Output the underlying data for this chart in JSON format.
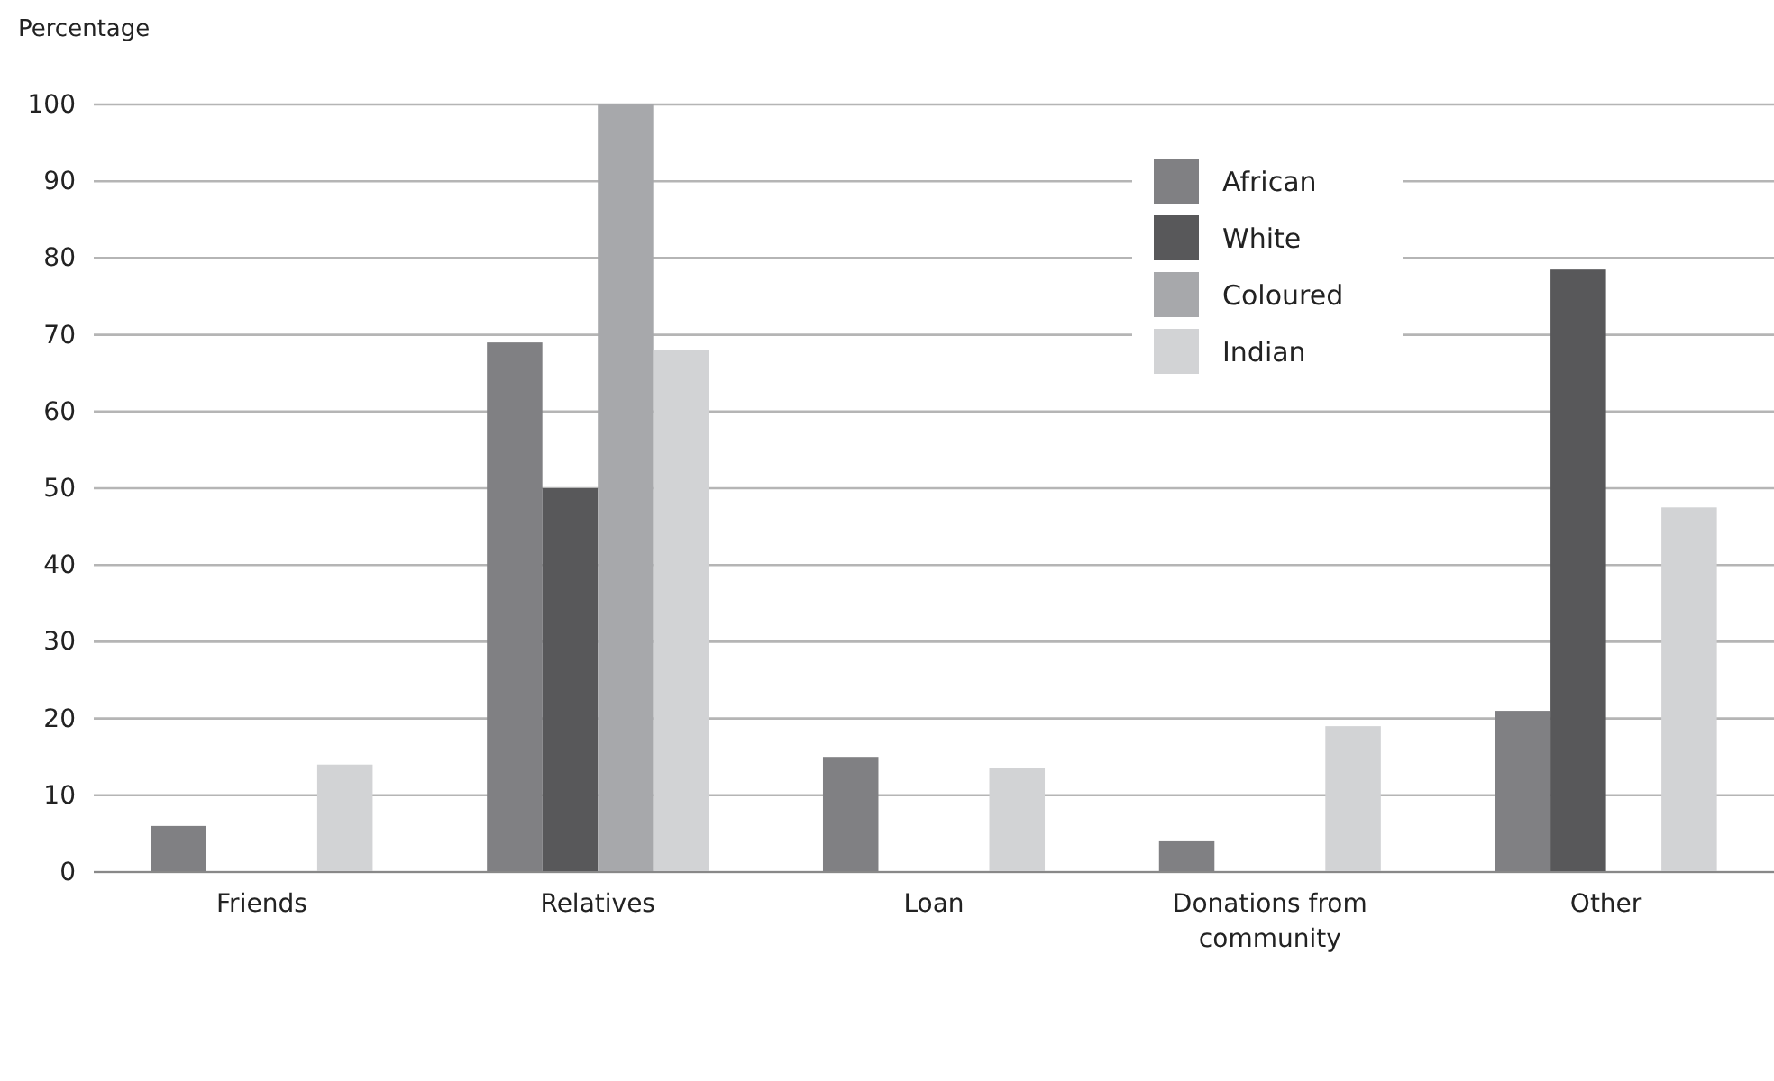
{
  "chart_data": {
    "type": "bar",
    "ylabel": "Percentage",
    "categories": [
      "Friends",
      "Relatives",
      "Loan",
      "Donations from community",
      "Other"
    ],
    "series": [
      {
        "name": "African",
        "color": "#808083",
        "values": [
          6,
          69,
          15,
          4,
          21
        ]
      },
      {
        "name": "White",
        "color": "#58585a",
        "values": [
          0,
          50,
          0,
          0,
          78.5
        ]
      },
      {
        "name": "Coloured",
        "color": "#a7a8ab",
        "values": [
          0,
          100,
          0,
          0,
          0
        ]
      },
      {
        "name": "Indian",
        "color": "#d2d3d5",
        "values": [
          14,
          68,
          13.5,
          19,
          47.5
        ]
      }
    ],
    "ylim": [
      0,
      100
    ],
    "yticks": [
      0,
      10,
      20,
      30,
      40,
      50,
      60,
      70,
      80,
      90,
      100
    ],
    "grid": "y",
    "legend": "top right"
  }
}
